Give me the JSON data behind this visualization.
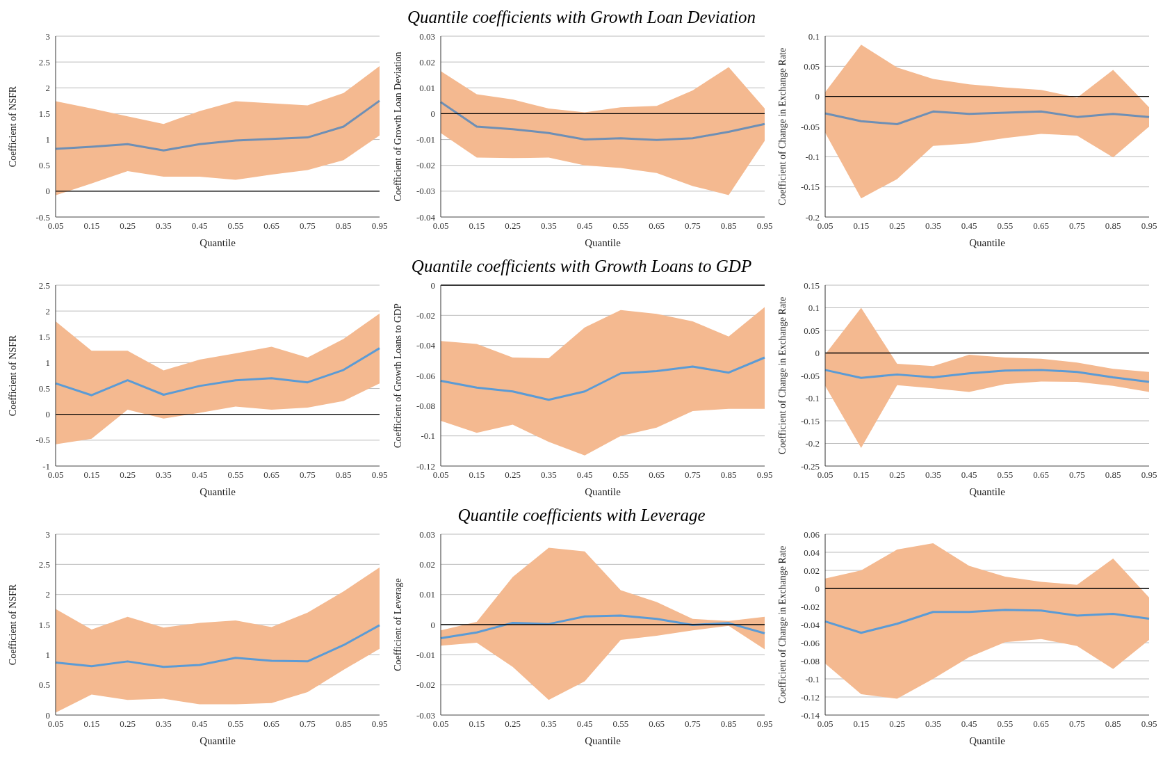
{
  "chart_data": [
    {
      "type": "line",
      "categories": [
        "0.05",
        "0.15",
        "0.25",
        "0.35",
        "0.45",
        "0.55",
        "0.65",
        "0.75",
        "0.85",
        "0.95"
      ],
      "xlabel": "Quantile",
      "ylabel": "Coefficient of NSFR",
      "ylim": [
        -0.5,
        3
      ],
      "yticks": [
        -0.5,
        0,
        0.5,
        1,
        1.5,
        2,
        2.5,
        3
      ],
      "grid": "y",
      "ref_lines": [
        {
          "axis": "y",
          "value": 0,
          "color": "#000000"
        }
      ],
      "series": [
        {
          "color": "#6e8fb5",
          "values": [
            0.82,
            0.86,
            0.91,
            0.79,
            0.91,
            0.98,
            1.01,
            1.04,
            1.25,
            1.75
          ],
          "lower": [
            -0.08,
            0.15,
            0.39,
            0.28,
            0.28,
            0.22,
            0.32,
            0.41,
            0.6,
            1.08
          ],
          "upper": [
            1.74,
            1.6,
            1.45,
            1.3,
            1.55,
            1.74,
            1.7,
            1.66,
            1.9,
            2.42
          ]
        }
      ]
    },
    {
      "type": "line",
      "title": "Quantile coefficients with Growth Loan Deviation",
      "categories": [
        "0.05",
        "0.15",
        "0.25",
        "0.35",
        "0.45",
        "0.55",
        "0.65",
        "0.75",
        "0.85",
        "0.95"
      ],
      "xlabel": "Quantile",
      "ylabel": "Coefficient of  Growth Loan Deviation",
      "ylim": [
        -0.04,
        0.03
      ],
      "yticks": [
        -0.04,
        -0.03,
        -0.02,
        -0.01,
        0,
        0.01,
        0.02,
        0.03
      ],
      "grid": "y",
      "ref_lines": [
        {
          "axis": "y",
          "value": 0,
          "color": "#000000"
        }
      ],
      "series": [
        {
          "color": "#6e8fb5",
          "values": [
            0.0045,
            -0.005,
            -0.006,
            -0.0075,
            -0.01,
            -0.0095,
            -0.0102,
            -0.0095,
            -0.007,
            -0.004
          ],
          "lower": [
            -0.0075,
            -0.017,
            -0.0172,
            -0.017,
            -0.02,
            -0.021,
            -0.023,
            -0.028,
            -0.0315,
            -0.0105
          ],
          "upper": [
            0.0165,
            0.0075,
            0.0055,
            0.002,
            0.0005,
            0.0025,
            0.003,
            0.009,
            0.018,
            0.002
          ]
        }
      ]
    },
    {
      "type": "line",
      "categories": [
        "0.05",
        "0.15",
        "0.25",
        "0.35",
        "0.45",
        "0.55",
        "0.65",
        "0.75",
        "0.85",
        "0.95"
      ],
      "xlabel": "Quantile",
      "ylabel": "Coefficient of Change in Exchange Rate",
      "ylim": [
        -0.2,
        0.1
      ],
      "yticks": [
        -0.2,
        -0.15,
        -0.1,
        -0.05,
        0,
        0.05,
        0.1
      ],
      "grid": "y",
      "ref_lines": [
        {
          "axis": "y",
          "value": 0,
          "color": "#000000"
        }
      ],
      "series": [
        {
          "color": "#6e8fb5",
          "values": [
            -0.028,
            -0.041,
            -0.046,
            -0.025,
            -0.029,
            -0.027,
            -0.025,
            -0.034,
            -0.029,
            -0.034
          ],
          "lower": [
            -0.06,
            -0.169,
            -0.137,
            -0.082,
            -0.078,
            -0.069,
            -0.062,
            -0.065,
            -0.101,
            -0.05
          ],
          "upper": [
            0.007,
            0.086,
            0.048,
            0.029,
            0.02,
            0.015,
            0.011,
            -0.002,
            0.044,
            -0.018
          ]
        }
      ]
    },
    {
      "type": "line",
      "categories": [
        "0.05",
        "0.15",
        "0.25",
        "0.35",
        "0.45",
        "0.55",
        "0.65",
        "0.75",
        "0.85",
        "0.95"
      ],
      "xlabel": "Quantile",
      "ylabel": "Coefficient of NSFR",
      "ylim": [
        -1,
        2.5
      ],
      "yticks": [
        -1,
        -0.5,
        0,
        0.5,
        1,
        1.5,
        2,
        2.5
      ],
      "grid": "y",
      "ref_lines": [
        {
          "axis": "y",
          "value": 0,
          "color": "#000000"
        }
      ],
      "series": [
        {
          "color": "#5b9bd5",
          "values": [
            0.6,
            0.37,
            0.66,
            0.38,
            0.55,
            0.66,
            0.7,
            0.62,
            0.86,
            1.28
          ],
          "lower": [
            -0.58,
            -0.47,
            0.09,
            -0.08,
            0.03,
            0.15,
            0.09,
            0.13,
            0.26,
            0.6
          ],
          "upper": [
            1.8,
            1.23,
            1.23,
            0.85,
            1.06,
            1.18,
            1.31,
            1.1,
            1.46,
            1.95
          ]
        }
      ]
    },
    {
      "type": "line",
      "title": "Quantile coefficients with Growth Loans to GDP",
      "categories": [
        "0.05",
        "0.15",
        "0.25",
        "0.35",
        "0.45",
        "0.55",
        "0.65",
        "0.75",
        "0.85",
        "0.95"
      ],
      "xlabel": "Quantile",
      "ylabel": "Coefficient of Growth Loans to GDP",
      "ylim": [
        -0.12,
        0
      ],
      "yticks": [
        -0.12,
        -0.1,
        -0.08,
        -0.06,
        -0.04,
        -0.02,
        0
      ],
      "grid": "y",
      "ref_lines": [
        {
          "axis": "y",
          "value": 0,
          "color": "#000000"
        }
      ],
      "series": [
        {
          "color": "#5b9bd5",
          "values": [
            -0.0635,
            -0.068,
            -0.0705,
            -0.076,
            -0.0705,
            -0.0585,
            -0.057,
            -0.054,
            -0.058,
            -0.048
          ],
          "lower": [
            -0.09,
            -0.098,
            -0.0925,
            -0.104,
            -0.113,
            -0.1,
            -0.0945,
            -0.0835,
            -0.082,
            -0.082
          ],
          "upper": [
            -0.037,
            -0.039,
            -0.048,
            -0.0485,
            -0.028,
            -0.0165,
            -0.019,
            -0.024,
            -0.034,
            -0.0145
          ]
        }
      ]
    },
    {
      "type": "line",
      "categories": [
        "0.05",
        "0.15",
        "0.25",
        "0.35",
        "0.45",
        "0.55",
        "0.65",
        "0.75",
        "0.85",
        "0.95"
      ],
      "xlabel": "Quantile",
      "ylabel": "Coefficient of Change in Exchange Rate",
      "ylim": [
        -0.25,
        0.15
      ],
      "yticks": [
        -0.25,
        -0.2,
        -0.15,
        -0.1,
        -0.05,
        0,
        0.05,
        0.1,
        0.15
      ],
      "grid": "y",
      "ref_lines": [
        {
          "axis": "y",
          "value": 0,
          "color": "#000000"
        }
      ],
      "series": [
        {
          "color": "#5b9bd5",
          "values": [
            -0.0375,
            -0.055,
            -0.0475,
            -0.054,
            -0.045,
            -0.039,
            -0.0375,
            -0.042,
            -0.054,
            -0.064
          ],
          "lower": [
            -0.0725,
            -0.21,
            -0.071,
            -0.078,
            -0.086,
            -0.069,
            -0.063,
            -0.064,
            -0.0725,
            -0.086
          ],
          "upper": [
            -0.003,
            0.1,
            -0.024,
            -0.029,
            -0.004,
            -0.01,
            -0.0125,
            -0.021,
            -0.035,
            -0.042
          ]
        }
      ]
    },
    {
      "type": "line",
      "categories": [
        "0.05",
        "0.15",
        "0.25",
        "0.35",
        "0.45",
        "0.55",
        "0.65",
        "0.75",
        "0.85",
        "0.95"
      ],
      "xlabel": "Quantile",
      "ylabel": "Coefficient  of NSFR",
      "ylim": [
        0,
        3
      ],
      "yticks": [
        0,
        0.5,
        1,
        1.5,
        2,
        2.5,
        3
      ],
      "grid": "y",
      "series": [
        {
          "color": "#5b9bd5",
          "values": [
            0.87,
            0.81,
            0.89,
            0.8,
            0.83,
            0.95,
            0.9,
            0.89,
            1.16,
            1.49
          ],
          "lower": [
            0.04,
            0.34,
            0.25,
            0.27,
            0.18,
            0.18,
            0.2,
            0.38,
            0.75,
            1.1
          ],
          "upper": [
            1.76,
            1.42,
            1.63,
            1.45,
            1.53,
            1.57,
            1.46,
            1.7,
            2.05,
            2.45
          ]
        }
      ]
    },
    {
      "type": "line",
      "title": "Quantile coefficients with Leverage",
      "categories": [
        "0.05",
        "0.15",
        "0.25",
        "0.35",
        "0.45",
        "0.55",
        "0.65",
        "0.75",
        "0.85",
        "0.95"
      ],
      "xlabel": "Quantile",
      "ylabel": "Coefficient of Leverage",
      "ylim": [
        -0.03,
        0.03
      ],
      "yticks": [
        -0.03,
        -0.02,
        -0.01,
        0,
        0.01,
        0.02,
        0.03
      ],
      "grid": "y",
      "ref_lines": [
        {
          "axis": "y",
          "value": 0,
          "color": "#000000"
        }
      ],
      "series": [
        {
          "color": "#5b9bd5",
          "values": [
            -0.0045,
            -0.0026,
            0.0006,
            0.0002,
            0.0027,
            0.003,
            0.0019,
            -0.0001,
            0.0005,
            -0.0029
          ],
          "lower": [
            -0.007,
            -0.006,
            -0.014,
            -0.025,
            -0.0188,
            -0.0051,
            -0.0037,
            -0.0019,
            -0.0004,
            -0.0082
          ],
          "upper": [
            -0.0019,
            0.0009,
            0.0158,
            0.0255,
            0.0243,
            0.0114,
            0.0075,
            0.0019,
            0.0012,
            0.0026
          ]
        }
      ]
    },
    {
      "type": "line",
      "categories": [
        "0.05",
        "0.15",
        "0.25",
        "0.35",
        "0.45",
        "0.55",
        "0.65",
        "0.75",
        "0.85",
        "0.95"
      ],
      "xlabel": "Quantile",
      "ylabel": "Coefficient of Change in Exchange Rate",
      "ylim": [
        -0.14,
        0.06
      ],
      "yticks": [
        -0.14,
        -0.12,
        -0.1,
        -0.08,
        -0.06,
        -0.04,
        -0.02,
        0,
        0.02,
        0.04,
        0.06
      ],
      "grid": "y",
      "ref_lines": [
        {
          "axis": "y",
          "value": 0,
          "color": "#000000"
        }
      ],
      "series": [
        {
          "color": "#5b9bd5",
          "values": [
            -0.0364,
            -0.049,
            -0.039,
            -0.026,
            -0.026,
            -0.0236,
            -0.0244,
            -0.03,
            -0.028,
            -0.0335
          ],
          "lower": [
            -0.083,
            -0.117,
            -0.122,
            -0.1,
            -0.076,
            -0.0595,
            -0.056,
            -0.0636,
            -0.089,
            -0.057
          ],
          "upper": [
            0.011,
            0.02,
            0.043,
            0.05,
            0.025,
            0.013,
            0.0074,
            0.004,
            0.033,
            -0.01
          ]
        }
      ]
    }
  ]
}
